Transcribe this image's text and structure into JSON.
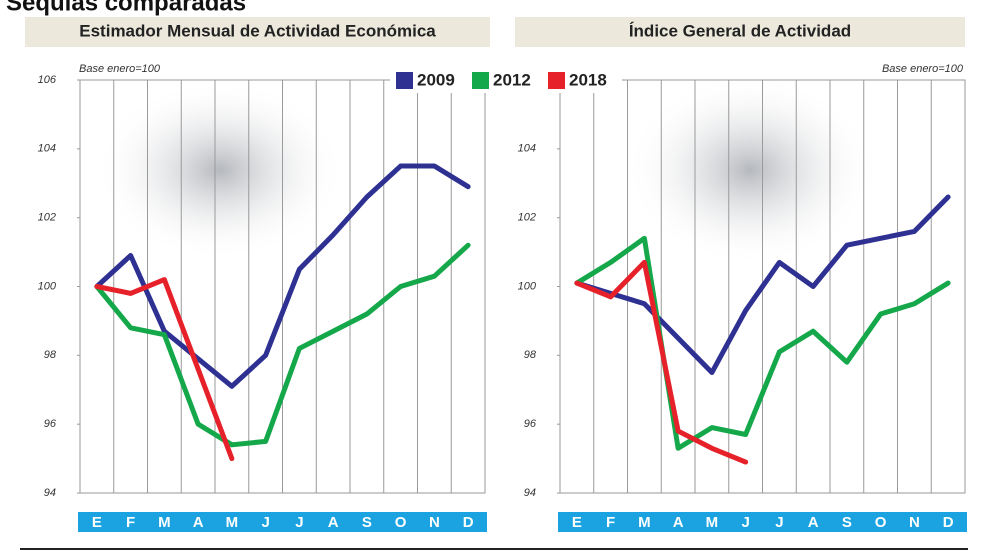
{
  "title": "Sequías comparadas",
  "legend": [
    {
      "name": "2009",
      "color": "#2e3192"
    },
    {
      "name": "2012",
      "color": "#14a84a"
    },
    {
      "name": "2018",
      "color": "#e6212a"
    }
  ],
  "chart_data": [
    {
      "type": "line",
      "title": "Estimador Mensual de Actividad Económica",
      "subtitle": "Base enero=100",
      "categories": [
        "E",
        "F",
        "M",
        "A",
        "M",
        "J",
        "J",
        "A",
        "S",
        "O",
        "N",
        "D"
      ],
      "series": [
        {
          "color": "#2e3192",
          "values": [
            100,
            100.9,
            98.7,
            97.9,
            97.1,
            98.0,
            100.5,
            101.5,
            102.6,
            103.5,
            103.5,
            102.9
          ]
        },
        {
          "color": "#14a84a",
          "values": [
            100,
            98.8,
            98.6,
            96.0,
            95.4,
            95.5,
            98.2,
            98.7,
            99.2,
            100.0,
            100.3,
            101.2
          ]
        },
        {
          "color": "#e6212a",
          "values": [
            100,
            99.8,
            100.2,
            97.6,
            95.0,
            null,
            null,
            null,
            null,
            null,
            null,
            null
          ]
        }
      ],
      "ylim": [
        94,
        106
      ],
      "yticks": [
        94,
        96,
        98,
        100,
        102,
        104,
        106
      ]
    },
    {
      "type": "line",
      "title": "Índice General de Actividad",
      "subtitle": "Base enero=100",
      "categories": [
        "E",
        "F",
        "M",
        "A",
        "M",
        "J",
        "J",
        "A",
        "S",
        "O",
        "N",
        "D"
      ],
      "series": [
        {
          "color": "#2e3192",
          "values": [
            100.1,
            99.8,
            99.5,
            98.5,
            97.5,
            99.3,
            100.7,
            100.0,
            101.2,
            101.4,
            101.6,
            102.6
          ]
        },
        {
          "color": "#14a84a",
          "values": [
            100.1,
            100.7,
            101.4,
            95.3,
            95.9,
            95.7,
            98.1,
            98.7,
            97.8,
            99.2,
            99.5,
            100.1
          ]
        },
        {
          "color": "#e6212a",
          "values": [
            100.1,
            99.7,
            100.7,
            95.8,
            95.3,
            94.9,
            null,
            null,
            null,
            null,
            null,
            null
          ]
        }
      ],
      "ylim": [
        94,
        106
      ],
      "yticks": [
        94,
        96,
        98,
        100,
        102,
        104
      ]
    }
  ]
}
